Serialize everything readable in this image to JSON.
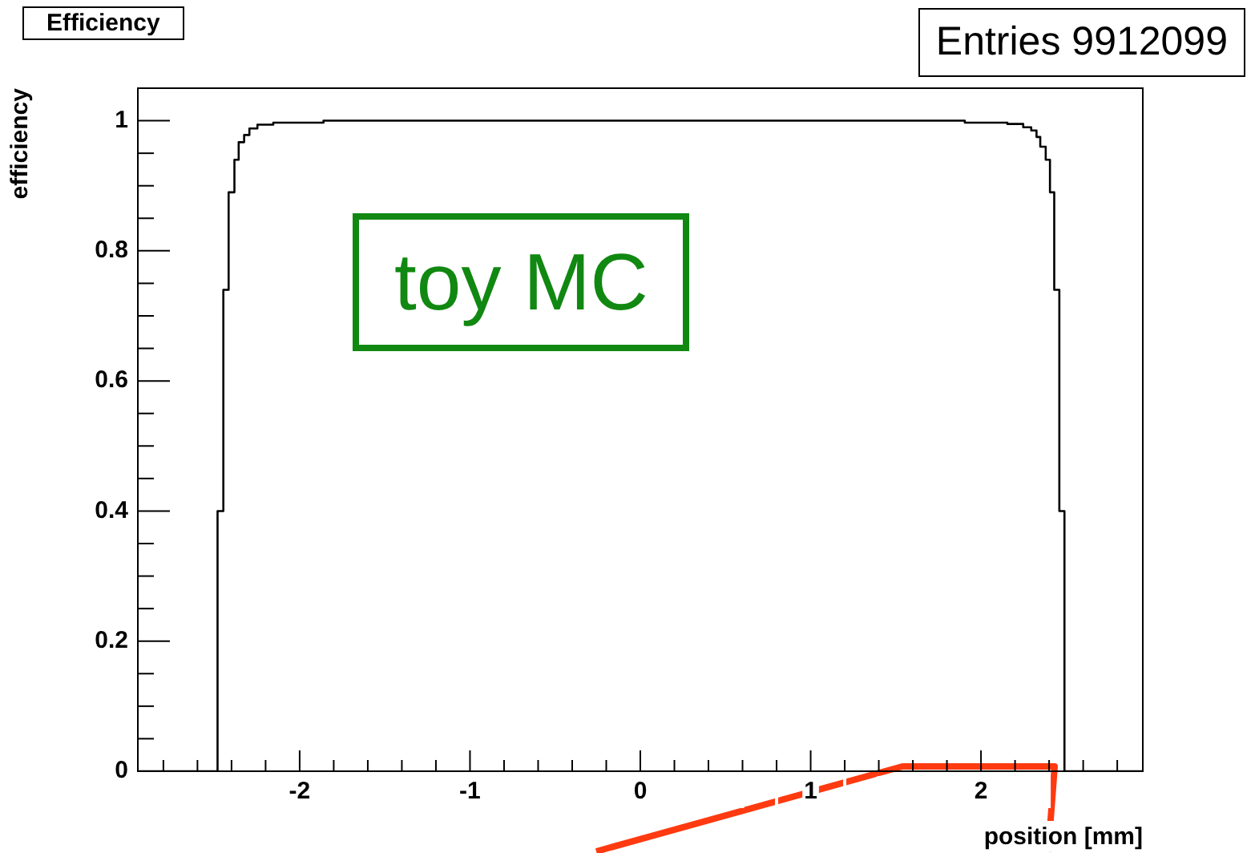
{
  "chart_data": {
    "type": "step",
    "title": "Efficiency",
    "xlabel": "position [mm]",
    "ylabel": "efficiency",
    "annotations": [
      "Entries 9912099",
      "toy MC"
    ],
    "x": [
      -2.95,
      -2.482,
      -2.448,
      -2.417,
      -2.383,
      -2.358,
      -2.326,
      -2.295,
      -2.248,
      -2.155,
      -1.86,
      1.905,
      2.155,
      2.248,
      2.295,
      2.326,
      2.348,
      2.38,
      2.405,
      2.43,
      2.46,
      2.49,
      2.95
    ],
    "series": [
      {
        "color": "#000000",
        "values": [
          0,
          0.4,
          0.74,
          0.89,
          0.94,
          0.967,
          0.978,
          0.988,
          0.994,
          0.997,
          1.0,
          0.997,
          0.995,
          0.99,
          0.985,
          0.975,
          0.96,
          0.94,
          0.89,
          0.74,
          0.4,
          0,
          0
        ]
      }
    ],
    "xlim": [
      -2.95,
      2.95
    ],
    "xticks": [
      {
        "value": -2.8,
        "label": null
      },
      {
        "value": -2.6,
        "label": null
      },
      {
        "value": -2.4,
        "label": null
      },
      {
        "value": -2.2,
        "label": null
      },
      -2,
      {
        "value": -1.8,
        "label": null
      },
      {
        "value": -1.6,
        "label": null
      },
      {
        "value": -1.4,
        "label": null
      },
      {
        "value": -1.2,
        "label": null
      },
      -1,
      {
        "value": -0.8,
        "label": null
      },
      {
        "value": -0.6,
        "label": null
      },
      {
        "value": -0.4,
        "label": null
      },
      {
        "value": -0.2,
        "label": null
      },
      0,
      {
        "value": 0.2,
        "label": null
      },
      {
        "value": 0.4,
        "label": null
      },
      {
        "value": 0.6,
        "label": null
      },
      {
        "value": 0.8,
        "label": null
      },
      1,
      {
        "value": 1.2,
        "label": null
      },
      {
        "value": 1.4,
        "label": null
      },
      {
        "value": 1.6,
        "label": null
      },
      {
        "value": 1.8,
        "label": null
      },
      2,
      {
        "value": 2.2,
        "label": null
      },
      {
        "value": 2.4,
        "label": null
      },
      {
        "value": 2.6,
        "label": null
      },
      {
        "value": 2.8,
        "label": null
      }
    ],
    "ylim": [
      0,
      1.05
    ],
    "yticks": [
      0,
      {
        "value": 0.05,
        "label": null
      },
      {
        "value": 0.1,
        "label": null
      },
      {
        "value": 0.15,
        "label": null
      },
      0.2,
      {
        "value": 0.25,
        "label": null
      },
      {
        "value": 0.3,
        "label": null
      },
      {
        "value": 0.35,
        "label": null
      },
      0.4,
      {
        "value": 0.45,
        "label": null
      },
      {
        "value": 0.5,
        "label": null
      },
      {
        "value": 0.55,
        "label": null
      },
      0.6,
      {
        "value": 0.65,
        "label": null
      },
      {
        "value": 0.7,
        "label": null
      },
      {
        "value": 0.75,
        "label": null
      },
      0.8,
      {
        "value": 0.85,
        "label": null
      },
      {
        "value": 0.9,
        "label": null
      },
      {
        "value": 0.95,
        "label": null
      },
      1,
      {
        "value": 1.05,
        "label": null
      }
    ],
    "grid": false,
    "legend": false,
    "marker": "none",
    "line_style": "solid"
  }
}
